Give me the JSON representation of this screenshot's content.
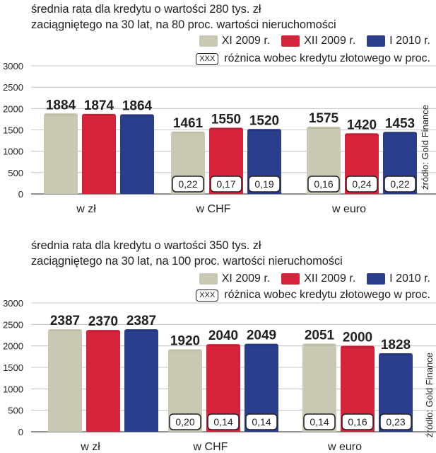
{
  "chart_data": [
    {
      "type": "bar",
      "title_lines": [
        "średnia rata dla kredytu o wartości 280 tys. zł",
        "zaciągniętego na 30 lat, na 80 proc. wartości nieruchomości"
      ],
      "legend": [
        {
          "label": "XI 2009 r.",
          "color": "#c9c9b3"
        },
        {
          "label": "XII 2009 r.",
          "color": "#d6223a"
        },
        {
          "label": "I 2010 r.",
          "color": "#2a3e8c"
        }
      ],
      "diff_legend": {
        "box": "XXX",
        "label": "różnica wobec kredytu złotowego w proc."
      },
      "ylim": [
        0,
        3000
      ],
      "yticks": [
        "0",
        "500",
        "1000",
        "1500",
        "2000",
        "2500",
        "3000"
      ],
      "categories": [
        "w zł",
        "w CHF",
        "w euro"
      ],
      "series": [
        {
          "name": "XI 2009 r.",
          "values": [
            1884,
            1461,
            1575
          ]
        },
        {
          "name": "XII 2009 r.",
          "values": [
            1874,
            1550,
            1420
          ]
        },
        {
          "name": "I 2010 r.",
          "values": [
            1864,
            1520,
            1453
          ]
        }
      ],
      "diffs": [
        [
          null,
          null,
          null
        ],
        [
          "0,22",
          "0,17",
          "0,19"
        ],
        [
          "0,16",
          "0,24",
          "0,22"
        ]
      ],
      "source": "źródło: Gold Finance"
    },
    {
      "type": "bar",
      "title_lines": [
        "średnia rata dla kredytu o wartości 350 tys. zł",
        "zaciągniętego na 30 lat, na 100 proc. wartości nieruchomości"
      ],
      "legend": [
        {
          "label": "XI 2009 r.",
          "color": "#c9c9b3"
        },
        {
          "label": "XII 2009 r.",
          "color": "#d6223a"
        },
        {
          "label": "I 2010 r.",
          "color": "#2a3e8c"
        }
      ],
      "diff_legend": {
        "box": "XXX",
        "label": "różnica wobec kredytu złotowego w proc."
      },
      "ylim": [
        0,
        3000
      ],
      "yticks": [
        "0",
        "500",
        "1000",
        "1500",
        "2000",
        "2500",
        "3000"
      ],
      "categories": [
        "w zł",
        "w CHF",
        "w euro"
      ],
      "series": [
        {
          "name": "XI 2009 r.",
          "values": [
            2387,
            1920,
            2051
          ]
        },
        {
          "name": "XII 2009 r.",
          "values": [
            2370,
            2040,
            2000
          ]
        },
        {
          "name": "I 2010 r.",
          "values": [
            2387,
            2049,
            1828
          ]
        }
      ],
      "diffs": [
        [
          null,
          null,
          null
        ],
        [
          "0,20",
          "0,14",
          "0,14"
        ],
        [
          "0,14",
          "0,16",
          "0,23"
        ]
      ],
      "source": "źródło: Gold Finance"
    }
  ]
}
